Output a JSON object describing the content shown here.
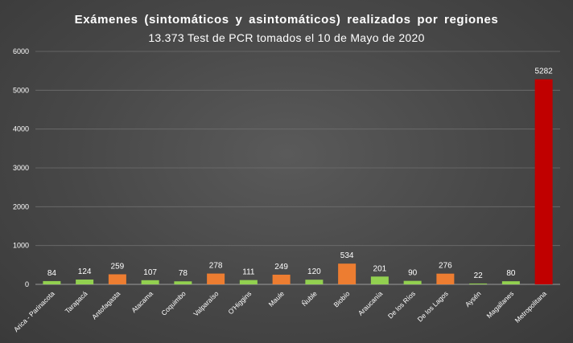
{
  "chart_data": {
    "type": "bar",
    "title": "Exámenes (sintomáticos y asintomáticos) realizados por regiones",
    "subtitle": "13.373 Test de PCR tomados el 10 de Mayo de 2020",
    "xlabel": "",
    "ylabel": "",
    "ylim": [
      0,
      6000
    ],
    "yticks": [
      0,
      1000,
      2000,
      3000,
      4000,
      5000,
      6000
    ],
    "grid": true,
    "legend": "none",
    "categories": [
      "Arica - Parinacota",
      "Tarapacá",
      "Antofagasta",
      "Atacama",
      "Coquimbo",
      "Valparaíso",
      "O'Higgins",
      "Maule",
      "Ñuble",
      "Biobío",
      "Araucanía",
      "De los Ríos",
      "De los Lagos",
      "Aysén",
      "Magallanes",
      "Metropolitana"
    ],
    "values": [
      84,
      124,
      259,
      107,
      78,
      278,
      111,
      249,
      120,
      534,
      201,
      90,
      276,
      22,
      80,
      5282
    ],
    "bar_colors": [
      "#92d050",
      "#92d050",
      "#ed7d31",
      "#92d050",
      "#92d050",
      "#ed7d31",
      "#92d050",
      "#ed7d31",
      "#92d050",
      "#ed7d31",
      "#92d050",
      "#92d050",
      "#ed7d31",
      "#92d050",
      "#92d050",
      "#c00000"
    ],
    "colors": {
      "green": "#92d050",
      "orange": "#ed7d31",
      "red": "#c00000",
      "text": "#ffffff"
    }
  }
}
